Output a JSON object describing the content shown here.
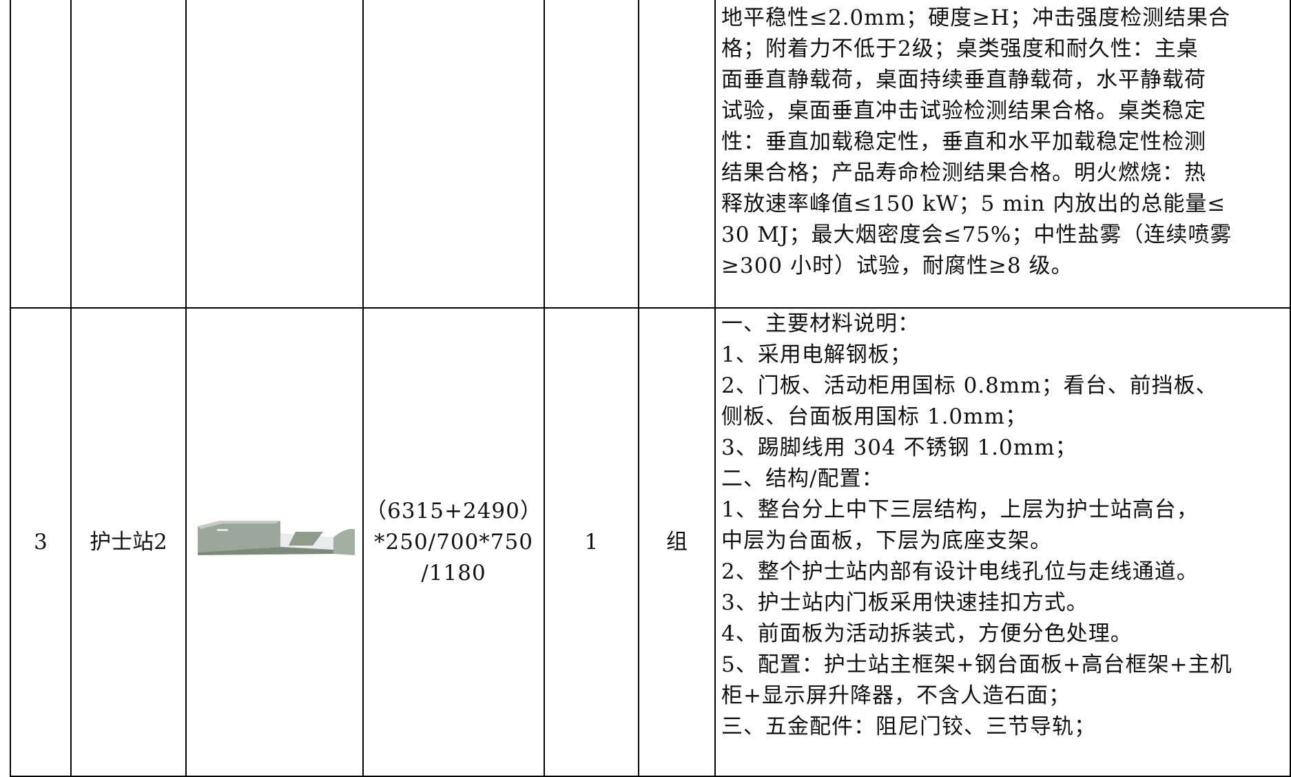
{
  "table": {
    "rows": [
      {
        "spec": [
          "地平稳性≤2.0mm；硬度≥H；冲击强度检测结果合",
          "格；附着力不低于2级；桌类强度和耐久性：主桌",
          "面垂直静载荷，桌面持续垂直静载荷，水平静载荷",
          "试验，桌面垂直冲击试验检测结果合格。桌类稳定",
          "性：垂直加载稳定性，垂直和水平加载稳定性检测",
          "结果合格；产品寿命检测结果合格。明火燃烧：热",
          "释放速率峰值≤150 kW；5 min 内放出的总能量≤",
          "30 MJ；最大烟密度会≤75%；中性盐雾（连续喷雾",
          "≥300 小时）试验，耐腐性≥8 级。"
        ]
      },
      {
        "no": "3",
        "name": "护士站2",
        "size": [
          "（6315+2490）",
          "*250/700*750",
          "/1180"
        ],
        "qty": "1",
        "unit": "组",
        "spec": [
          "一、主要材料说明：",
          "1、采用电解钢板；",
          "2、门板、活动柜用国标 0.8mm；看台、前挡板、",
          "侧板、台面板用国标 1.0mm；",
          "3、踢脚线用 304 不锈钢 1.0mm；",
          "二、结构/配置：",
          "1、整台分上中下三层结构，上层为护士站高台，",
          "中层为台面板，下层为底座支架。",
          "2、整个护士站内部有设计电线孔位与走线通道。",
          "3、护士站内门板采用快速挂扣方式。",
          "4、前面板为活动拆装式，方便分色处理。",
          "5、配置：护士站主框架+钢台面板+高台框架+主机",
          "柜+显示屏升降器，不含人造石面；",
          "三、五金配件：阻尼门铰、三节导轨；"
        ]
      }
    ]
  }
}
